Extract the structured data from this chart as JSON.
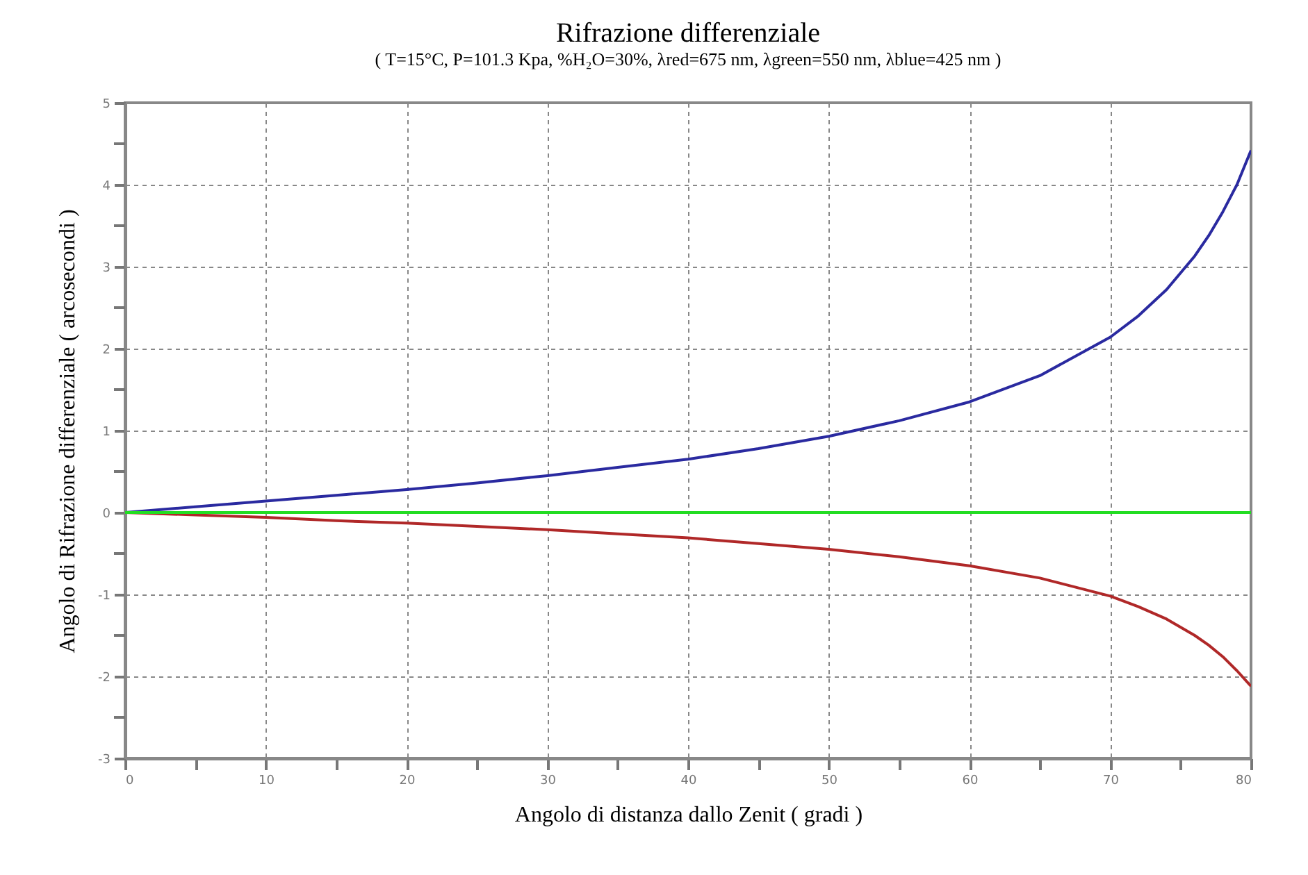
{
  "chart_data": {
    "type": "line",
    "title": "Rifrazione differenziale",
    "subtitle": "( T=15°C, P=101.3 Kpa, %H₂O=30%, λred=675 nm, λgreen=550 nm, λblue=425 nm )",
    "xlabel": "Angolo di distanza dallo Zenit ( gradi )",
    "ylabel": "Angolo di Rifrazione differenziale ( arcosecondi )",
    "x": [
      0,
      5,
      10,
      15,
      20,
      25,
      30,
      35,
      40,
      45,
      50,
      55,
      60,
      65,
      70,
      72,
      74,
      76,
      77,
      78,
      79,
      80
    ],
    "series": [
      {
        "color": "#2a2aa0",
        "values": [
          0,
          0.07,
          0.14,
          0.21,
          0.28,
          0.36,
          0.45,
          0.55,
          0.65,
          0.78,
          0.93,
          1.12,
          1.35,
          1.67,
          2.14,
          2.4,
          2.72,
          3.13,
          3.38,
          3.67,
          4.0,
          4.42
        ]
      },
      {
        "color": "#b02828",
        "values": [
          0,
          -0.03,
          -0.06,
          -0.1,
          -0.13,
          -0.17,
          -0.21,
          -0.26,
          -0.31,
          -0.38,
          -0.45,
          -0.54,
          -0.65,
          -0.8,
          -1.02,
          -1.15,
          -1.3,
          -1.5,
          -1.62,
          -1.76,
          -1.93,
          -2.12
        ]
      },
      {
        "color": "#22dd22",
        "values": [
          0,
          0,
          0,
          0,
          0,
          0,
          0,
          0,
          0,
          0,
          0,
          0,
          0,
          0,
          0,
          0,
          0,
          0,
          0,
          0,
          0,
          0
        ]
      }
    ],
    "xlim": [
      0,
      80
    ],
    "ylim": [
      -3,
      5
    ],
    "xticks": [
      0,
      {
        "value": 5,
        "label": null
      },
      10,
      {
        "value": 15,
        "label": null
      },
      20,
      {
        "value": 25,
        "label": null
      },
      30,
      {
        "value": 35,
        "label": null
      },
      40,
      {
        "value": 45,
        "label": null
      },
      50,
      {
        "value": 55,
        "label": null
      },
      60,
      {
        "value": 65,
        "label": null
      },
      70,
      {
        "value": 75,
        "label": null
      },
      80
    ],
    "yticks": [
      -3,
      {
        "value": -2.5,
        "label": null
      },
      -2,
      {
        "value": -1.5,
        "label": null
      },
      -1,
      {
        "value": -0.5,
        "label": null
      },
      0,
      {
        "value": 0.5,
        "label": null
      },
      1,
      {
        "value": 1.5,
        "label": null
      },
      2,
      {
        "value": 2.5,
        "label": null
      },
      3,
      {
        "value": 3.5,
        "label": null
      },
      4,
      {
        "value": 4.5,
        "label": null
      },
      5
    ],
    "grid": true,
    "line_style": "solid"
  }
}
